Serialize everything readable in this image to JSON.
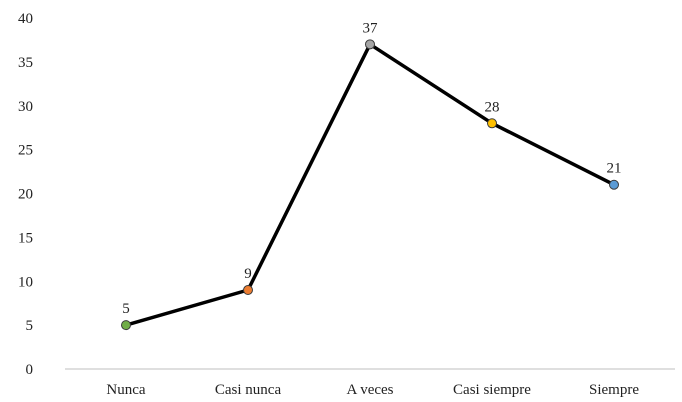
{
  "chart_data": {
    "type": "line",
    "title": "",
    "xlabel": "",
    "ylabel": "",
    "categories": [
      "Nunca",
      "Casi nunca",
      "A veces",
      "Casi siempre",
      "Siempre"
    ],
    "values": [
      5,
      9,
      37,
      28,
      21
    ],
    "point_colors": [
      "#70ad47",
      "#ed7d31",
      "#a5a5a5",
      "#ffc000",
      "#5b9bd5"
    ],
    "line_color": "#000000",
    "ylim": [
      0,
      40
    ],
    "yticks": [
      0,
      5,
      10,
      15,
      20,
      25,
      30,
      35,
      40
    ],
    "data_labels": [
      "5",
      "9",
      "37",
      "28",
      "21"
    ],
    "grid": false,
    "legend": "none"
  }
}
